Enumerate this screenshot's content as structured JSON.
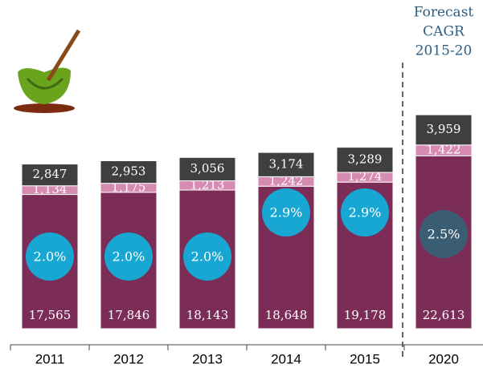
{
  "chart_data": {
    "type": "stacked-bar",
    "categories": [
      "2011",
      "2012",
      "2013",
      "2014",
      "2015",
      "2020"
    ],
    "series": [
      {
        "color": "#7b2d58",
        "values": [
          17565,
          17846,
          18143,
          18648,
          19178,
          22613
        ],
        "value_labels": [
          "17,565",
          "17,846",
          "18,143",
          "18,648",
          "19,178",
          "22,613"
        ]
      },
      {
        "color": "#d68bb3",
        "values": [
          1134,
          1175,
          1213,
          1242,
          1274,
          1422
        ],
        "value_labels": [
          "1,134",
          "1,175",
          "1,213",
          "1,242",
          "1,274",
          "1,422"
        ]
      },
      {
        "color": "#3f3f3f",
        "values": [
          2847,
          2953,
          3056,
          3174,
          3289,
          3959
        ],
        "value_labels": [
          "2,847",
          "2,953",
          "3,056",
          "3,174",
          "3,289",
          "3,959"
        ]
      }
    ],
    "growth": {
      "values": [
        2.0,
        2.0,
        2.0,
        2.9,
        2.9,
        2.5
      ],
      "value_labels": [
        "2.0%",
        "2.0%",
        "2.0%",
        "2.9%",
        "2.9%",
        "2.5%"
      ],
      "colors": [
        "#17a7d2",
        "#17a7d2",
        "#17a7d2",
        "#17a7d2",
        "#17a7d2",
        "#3a5d73"
      ]
    },
    "annotation": [
      "Forecast",
      "CAGR",
      "2015-20"
    ],
    "ylim": [
      0,
      30000
    ]
  }
}
